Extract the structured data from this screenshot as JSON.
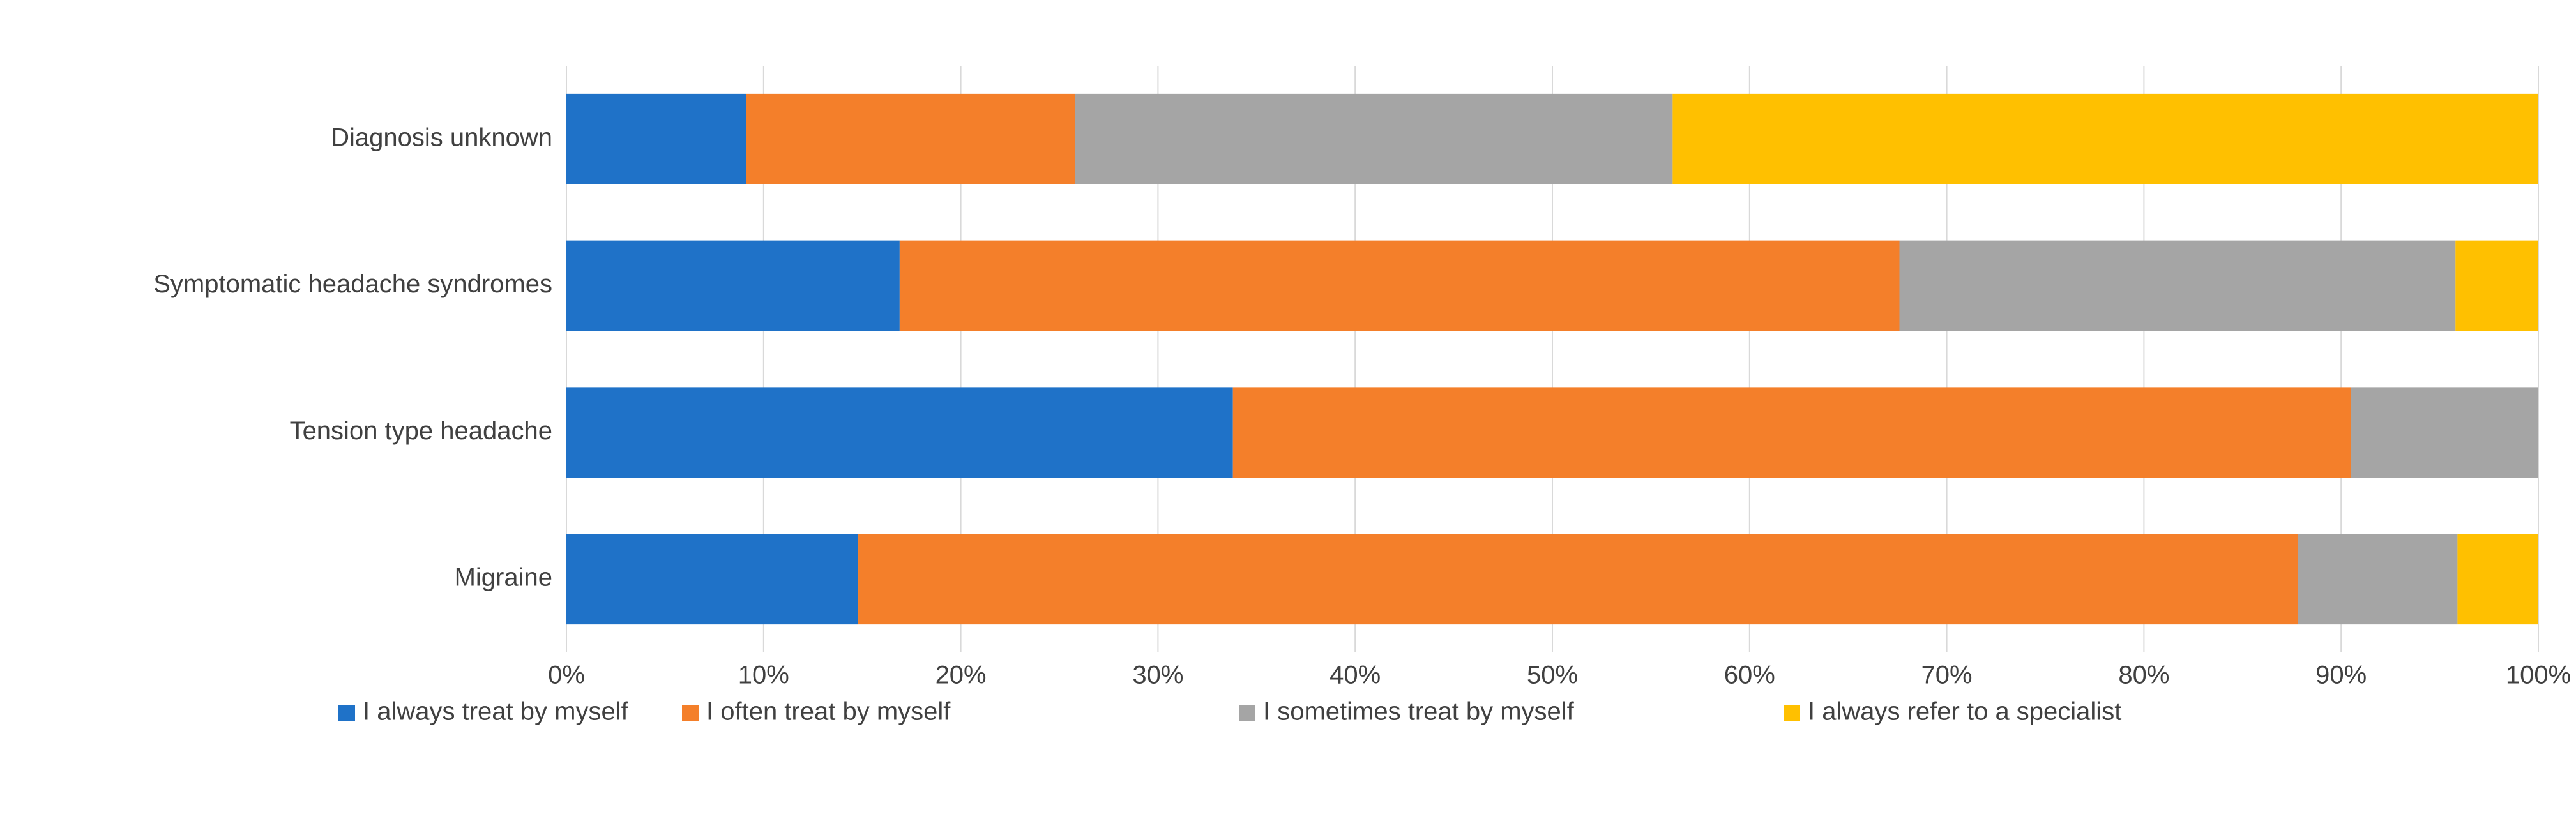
{
  "chart_data": {
    "type": "stacked-barh",
    "categories": [
      "Migraine",
      "Tension type headache",
      "Symptomatic headache syndromes",
      "Diagnosis unknown"
    ],
    "series": [
      {
        "name": "I always treat by myself",
        "color": "#1f72c8",
        "values": [
          14.8,
          33.8,
          16.9,
          9.1
        ]
      },
      {
        "name": "I often treat by myself",
        "color": "#f47f2a",
        "values": [
          73,
          56.7,
          50.7,
          16.7
        ]
      },
      {
        "name": "I sometimes treat by myself",
        "color": "#a5a5a5",
        "values": [
          8.1,
          9.5,
          28.2,
          30.3
        ]
      },
      {
        "name": "I always refer to a specialist",
        "color": "#ffc000",
        "values": [
          4.1,
          0,
          4.2,
          43.9
        ]
      }
    ],
    "xlim": [
      0,
      100
    ],
    "xticks": [
      {
        "value": 0,
        "label": "0%"
      },
      {
        "value": 10,
        "label": "10%"
      },
      {
        "value": 20,
        "label": "20%"
      },
      {
        "value": 30,
        "label": "30%"
      },
      {
        "value": 40,
        "label": "40%"
      },
      {
        "value": 50,
        "label": "50%"
      },
      {
        "value": 60,
        "label": "60%"
      },
      {
        "value": 70,
        "label": "70%"
      },
      {
        "value": 80,
        "label": "80%"
      },
      {
        "value": 90,
        "label": "90%"
      },
      {
        "value": 100,
        "label": "100%"
      }
    ],
    "grid": true,
    "legend": "bottom"
  }
}
